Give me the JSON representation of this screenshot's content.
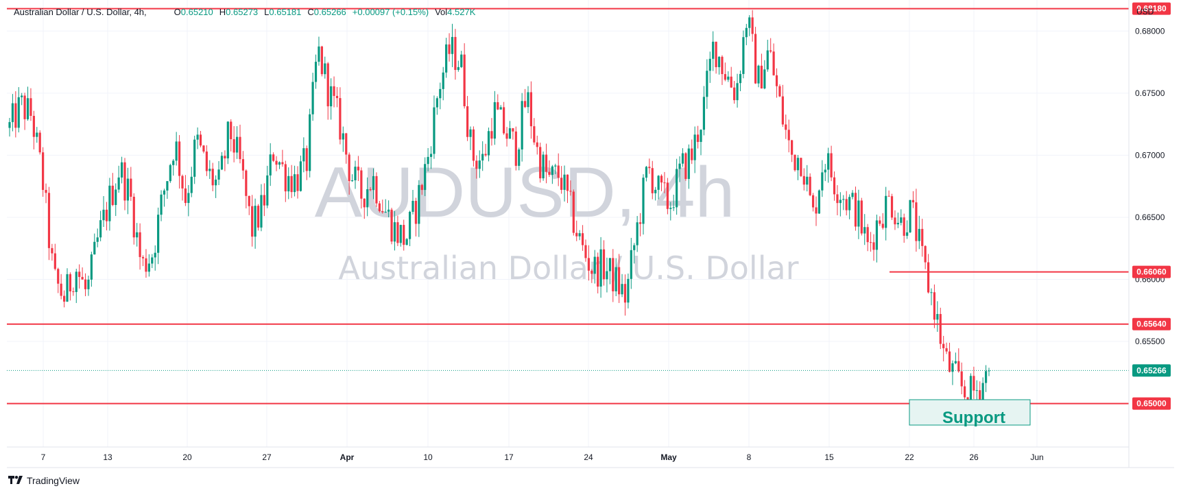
{
  "header": {
    "symbol_label": "Australian Dollar / U.S. Dollar, 4h,",
    "open_label": "O",
    "open_value": "0.65210",
    "high_label": "H",
    "high_value": "0.65273",
    "low_label": "L",
    "low_value": "0.65181",
    "close_label": "C",
    "close_value": "0.65266",
    "change_value": "+0.00097 (+0.15%)",
    "vol_label": "Vol",
    "vol_value": "4.527K"
  },
  "currency": "USD",
  "watermark": {
    "title": "AUDUSD, 4h",
    "subtitle": "Australian Dollar / U.S. Dollar"
  },
  "footer": {
    "brand": "TradingView"
  },
  "annotation": {
    "support_label": "Support"
  },
  "colors": {
    "up": "#089981",
    "down": "#f23645",
    "level_line": "#f23645",
    "grid": "#f0f3fa",
    "watermark": "#d1d4dc"
  },
  "chart_data": {
    "type": "candlestick",
    "timeframe": "4h",
    "x_tick_labels": [
      "7",
      "13",
      "20",
      "27",
      "Apr",
      "10",
      "17",
      "24",
      "May",
      "8",
      "15",
      "22",
      "26",
      "Jun"
    ],
    "y_tick_labels": [
      "0.68000",
      "0.67500",
      "0.67000",
      "0.66500",
      "0.66000",
      "0.65500"
    ],
    "ylim": [
      0.6465,
      0.6825
    ],
    "horizontal_levels": [
      {
        "value": 0.6818,
        "label": "0.68180"
      },
      {
        "value": 0.6606,
        "label": "0.66060"
      },
      {
        "value": 0.6564,
        "label": "0.65640"
      },
      {
        "value": 0.65,
        "label": "0.65000"
      }
    ],
    "last_price": {
      "value": 0.65266,
      "label": "0.65266"
    },
    "support_zone": {
      "label": "Support",
      "top": 0.65,
      "bottom": 0.6478
    },
    "path": [
      {
        "d": "7",
        "v": 0.6722
      },
      {
        "d": "7",
        "v": 0.674
      },
      {
        "d": "8",
        "v": 0.6732
      },
      {
        "d": "8",
        "v": 0.668
      },
      {
        "d": "9",
        "v": 0.66
      },
      {
        "d": "10",
        "v": 0.6585
      },
      {
        "d": "10",
        "v": 0.661
      },
      {
        "d": "12",
        "v": 0.6588
      },
      {
        "d": "13",
        "v": 0.663
      },
      {
        "d": "13",
        "v": 0.6662
      },
      {
        "d": "15",
        "v": 0.669
      },
      {
        "d": "16",
        "v": 0.6665
      },
      {
        "d": "16",
        "v": 0.661
      },
      {
        "d": "17",
        "v": 0.6622
      },
      {
        "d": "18",
        "v": 0.667
      },
      {
        "d": "20",
        "v": 0.6712
      },
      {
        "d": "21",
        "v": 0.6665
      },
      {
        "d": "22",
        "v": 0.6712
      },
      {
        "d": "23",
        "v": 0.6685
      },
      {
        "d": "24",
        "v": 0.6675
      },
      {
        "d": "25",
        "v": 0.672
      },
      {
        "d": "26",
        "v": 0.669
      },
      {
        "d": "27",
        "v": 0.664
      },
      {
        "d": "28",
        "v": 0.6658
      },
      {
        "d": "29",
        "v": 0.6705
      },
      {
        "d": "30",
        "v": 0.6685
      },
      {
        "d": "31",
        "v": 0.668
      },
      {
        "d": "Apr 1",
        "v": 0.6695
      },
      {
        "d": "Apr 2",
        "v": 0.6785
      },
      {
        "d": "Apr 3",
        "v": 0.6752
      },
      {
        "d": "Apr 4",
        "v": 0.6725
      },
      {
        "d": "Apr 5",
        "v": 0.6685
      },
      {
        "d": "Apr 6",
        "v": 0.6668
      },
      {
        "d": "Apr 7",
        "v": 0.6682
      },
      {
        "d": "Apr 9",
        "v": 0.6658
      },
      {
        "d": "Apr 10",
        "v": 0.664
      },
      {
        "d": "Apr 11",
        "v": 0.6632
      },
      {
        "d": "Apr 12",
        "v": 0.666
      },
      {
        "d": "Apr 13",
        "v": 0.6698
      },
      {
        "d": "Apr 14",
        "v": 0.6755
      },
      {
        "d": "Apr 14",
        "v": 0.6785
      },
      {
        "d": "Apr 15",
        "v": 0.6775
      },
      {
        "d": "Apr 16",
        "v": 0.67
      },
      {
        "d": "Apr 17",
        "v": 0.6695
      },
      {
        "d": "Apr 19",
        "v": 0.6735
      },
      {
        "d": "Apr 20",
        "v": 0.672
      },
      {
        "d": "Apr 21",
        "v": 0.6705
      },
      {
        "d": "Apr 22",
        "v": 0.6748
      },
      {
        "d": "Apr 23",
        "v": 0.67
      },
      {
        "d": "Apr 24",
        "v": 0.668
      },
      {
        "d": "Apr 25",
        "v": 0.6685
      },
      {
        "d": "Apr 26",
        "v": 0.6655
      },
      {
        "d": "Apr 27",
        "v": 0.6625
      },
      {
        "d": "Apr 28",
        "v": 0.6608
      },
      {
        "d": "Apr 29",
        "v": 0.661
      },
      {
        "d": "Apr 30",
        "v": 0.66
      },
      {
        "d": "Apr 30",
        "v": 0.6585
      },
      {
        "d": "May 1",
        "v": 0.664
      },
      {
        "d": "May 2",
        "v": 0.669
      },
      {
        "d": "May 3",
        "v": 0.667
      },
      {
        "d": "May 4",
        "v": 0.666
      },
      {
        "d": "May 5",
        "v": 0.6688
      },
      {
        "d": "May 6",
        "v": 0.67
      },
      {
        "d": "May 7",
        "v": 0.6735
      },
      {
        "d": "May 8",
        "v": 0.679
      },
      {
        "d": "May 9",
        "v": 0.6768
      },
      {
        "d": "May 10",
        "v": 0.675
      },
      {
        "d": "May 11",
        "v": 0.6812
      },
      {
        "d": "May 11",
        "v": 0.6758
      },
      {
        "d": "May 12",
        "v": 0.6785
      },
      {
        "d": "May 13",
        "v": 0.674
      },
      {
        "d": "May 14",
        "v": 0.67
      },
      {
        "d": "May 15",
        "v": 0.6698
      },
      {
        "d": "May 16",
        "v": 0.665
      },
      {
        "d": "May 17",
        "v": 0.67
      },
      {
        "d": "May 18",
        "v": 0.6678
      },
      {
        "d": "May 19",
        "v": 0.6665
      },
      {
        "d": "May 20",
        "v": 0.6655
      },
      {
        "d": "May 20",
        "v": 0.6625
      },
      {
        "d": "May 21",
        "v": 0.665
      },
      {
        "d": "May 22",
        "v": 0.6665
      },
      {
        "d": "May 23",
        "v": 0.6645
      },
      {
        "d": "May 23",
        "v": 0.6655
      },
      {
        "d": "May 24",
        "v": 0.6612
      },
      {
        "d": "May 24",
        "v": 0.658
      },
      {
        "d": "May 25",
        "v": 0.6535
      },
      {
        "d": "May 25",
        "v": 0.652
      },
      {
        "d": "May 26",
        "v": 0.6506
      },
      {
        "d": "May 26",
        "v": 0.6512
      },
      {
        "d": "May 27",
        "v": 0.6526
      }
    ]
  }
}
